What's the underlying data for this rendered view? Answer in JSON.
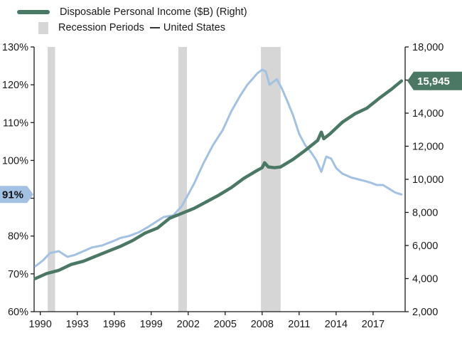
{
  "colors": {
    "income": "#4a7865",
    "us": "#a3c1e2",
    "recession": "#d6d6d6",
    "axis": "#1a1a1a",
    "callout_left_bg": "#a3c1e2",
    "callout_right_bg": "#4a7865"
  },
  "legend": {
    "income_label": "Disposable Personal Income ($B) (Right)",
    "recession_label": "Recession Periods",
    "us_label": "United States"
  },
  "callouts": {
    "left_value": "91%",
    "right_value": "15,945"
  },
  "chart_data": {
    "type": "line",
    "x_ticks": [
      "1990",
      "1993",
      "1996",
      "1999",
      "2002",
      "2005",
      "2008",
      "2011",
      "2014",
      "2017"
    ],
    "x_range": [
      1989.5,
      2019.6
    ],
    "left_axis": {
      "ticks": [
        "60%",
        "70%",
        "80%",
        "90%",
        "100%",
        "110%",
        "120%",
        "130%"
      ],
      "ylim": [
        60,
        130
      ]
    },
    "right_axis": {
      "ticks": [
        "2,000",
        "4,000",
        "6,000",
        "8,000",
        "10,000",
        "12,000",
        "14,000",
        "16,000",
        "18,000"
      ],
      "ylim": [
        2000,
        18000
      ]
    },
    "recessions": [
      [
        1990.6,
        1991.2
      ],
      [
        2001.2,
        2001.9
      ],
      [
        2007.9,
        2009.5
      ]
    ],
    "series": [
      {
        "name": "Disposable Personal Income ($B) (Right)",
        "axis": "right",
        "x": [
          1989.6,
          1990.5,
          1991.5,
          1992.5,
          1993.5,
          1994.5,
          1995.5,
          1996.5,
          1997.5,
          1998.5,
          1999.5,
          2000.5,
          2001.5,
          2002.5,
          2003.5,
          2004.5,
          2005.5,
          2006.5,
          2007.5,
          2008.0,
          2008.2,
          2008.5,
          2009.0,
          2009.5,
          2010.5,
          2011.5,
          2012.5,
          2012.8,
          2013.0,
          2013.5,
          2014.5,
          2015.5,
          2016.5,
          2017.5,
          2018.5,
          2019.3
        ],
        "y": [
          4000,
          4300,
          4500,
          4850,
          5050,
          5350,
          5650,
          5950,
          6300,
          6750,
          7050,
          7650,
          7950,
          8250,
          8650,
          9050,
          9500,
          10050,
          10500,
          10700,
          11000,
          10750,
          10700,
          10750,
          11200,
          11750,
          12350,
          12850,
          12450,
          12750,
          13450,
          13950,
          14300,
          14900,
          15450,
          15945
        ]
      },
      {
        "name": "United States",
        "axis": "left",
        "x": [
          1989.6,
          1990.2,
          1990.8,
          1991.5,
          1992.2,
          1992.8,
          1993.5,
          1994.2,
          1995.0,
          1995.8,
          1996.5,
          1997.2,
          1998.0,
          1998.8,
          1999.5,
          2000.0,
          2000.8,
          2001.5,
          2002.0,
          2002.5,
          2003.2,
          2004.0,
          2004.8,
          2005.5,
          2006.2,
          2006.8,
          2007.2,
          2007.6,
          2008.0,
          2008.3,
          2008.6,
          2009.2,
          2009.6,
          2010.0,
          2010.5,
          2011.0,
          2011.5,
          2012.0,
          2012.4,
          2012.8,
          2013.2,
          2013.6,
          2014.0,
          2014.5,
          2015.2,
          2015.8,
          2016.4,
          2016.9,
          2017.3,
          2017.8,
          2018.3,
          2018.8,
          2019.3
        ],
        "y": [
          72,
          73.5,
          75.5,
          76,
          74.5,
          75,
          76,
          77,
          77.5,
          78.5,
          79.5,
          80,
          81,
          82.5,
          84,
          85,
          85.5,
          88,
          91,
          94,
          99,
          104,
          108,
          113,
          117,
          120,
          121.5,
          123,
          124,
          123.5,
          120,
          121.5,
          119,
          116,
          112,
          107,
          104,
          102,
          100,
          97,
          101,
          100.5,
          98,
          96.5,
          95.5,
          95,
          94.5,
          94,
          93.5,
          93.5,
          92.5,
          91.5,
          91
        ]
      }
    ]
  }
}
